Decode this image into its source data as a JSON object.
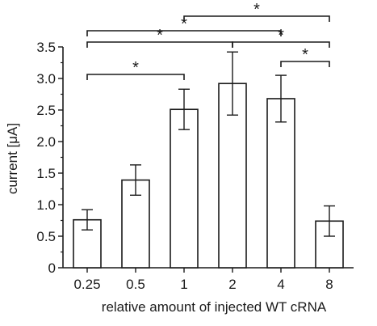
{
  "chart_data": {
    "type": "bar",
    "categories": [
      "0.25",
      "0.5",
      "1",
      "2",
      "4",
      "8"
    ],
    "values": [
      0.76,
      1.39,
      2.51,
      2.92,
      2.68,
      0.74
    ],
    "errors": [
      0.16,
      0.24,
      0.32,
      0.5,
      0.37,
      0.24
    ],
    "xlabel": "relative amount of injected WT cRNA",
    "ylabel": "current [μA]",
    "ylim": [
      0,
      3.5
    ],
    "yticks": [
      "0",
      "0.5",
      "1.0",
      "1.5",
      "2.0",
      "2.5",
      "3.0",
      "3.5"
    ],
    "grid": false,
    "bar_fill": "#ffffff",
    "stroke_color": "#1a1a1a",
    "significance": [
      {
        "from": "0.25",
        "to": "1",
        "label": "*"
      },
      {
        "from": "0.25",
        "to": "2",
        "label": "*"
      },
      {
        "from": "0.25",
        "to": "4",
        "label": "*"
      },
      {
        "from": "1",
        "to": "8",
        "label": "*"
      },
      {
        "from": "2",
        "to": "8",
        "label": "*"
      },
      {
        "from": "4",
        "to": "8",
        "label": "*"
      }
    ]
  }
}
